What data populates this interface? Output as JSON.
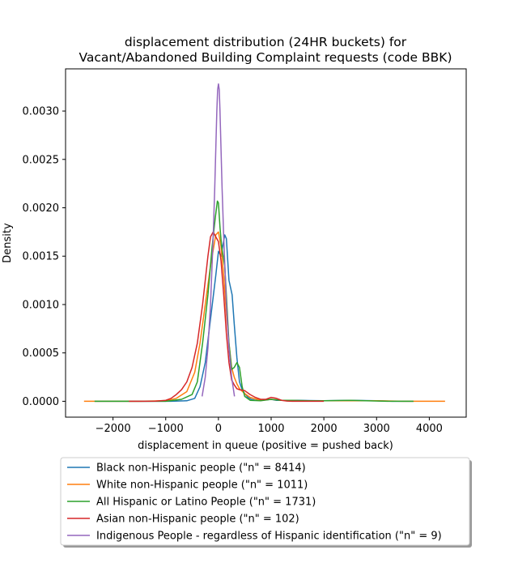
{
  "chart_data": {
    "type": "line",
    "title": [
      "displacement distribution (24HR buckets) for",
      "Vacant/Abandoned Building Complaint requests (code BBK)"
    ],
    "xlabel": "displacement in queue (positive = pushed back)",
    "ylabel": "Density",
    "xlim": [
      -2900,
      4700
    ],
    "ylim": [
      -0.000164,
      0.003436
    ],
    "xticks": [
      -2000,
      -1000,
      0,
      1000,
      2000,
      3000,
      4000
    ],
    "xtick_labels": [
      "−2000",
      "−1000",
      "0",
      "1000",
      "2000",
      "3000",
      "4000"
    ],
    "yticks": [
      0,
      0.0005,
      0.001,
      0.0015,
      0.002,
      0.0025,
      0.003
    ],
    "ytick_labels": [
      "0.0000",
      "0.0005",
      "0.0010",
      "0.0015",
      "0.0020",
      "0.0025",
      "0.0030"
    ],
    "grid": false,
    "legend_position": "below plot",
    "series": [
      {
        "name": "Black non-Hispanic people (\"n\" = 8414)",
        "color": "#1f77b4",
        "x": [
          -2350,
          -1500,
          -900,
          -600,
          -450,
          -350,
          -250,
          -150,
          -50,
          0,
          50,
          80,
          120,
          150,
          200,
          260,
          300,
          350,
          400,
          450,
          500,
          560,
          620,
          700,
          800,
          1000,
          1100,
          1300,
          1500,
          2000,
          2500,
          3000,
          3300,
          3500,
          3700
        ],
        "y": [
          0,
          0,
          0,
          5e-06,
          3e-05,
          0.00015,
          0.0004,
          0.00085,
          0.0013,
          0.00155,
          0.0015,
          0.0016,
          0.00172,
          0.00168,
          0.00125,
          0.0011,
          0.0008,
          0.00045,
          0.0002,
          0.00012,
          8e-05,
          4e-05,
          2e-05,
          1e-05,
          1e-05,
          2e-05,
          1e-05,
          1e-05,
          1e-05,
          5e-06,
          1e-05,
          5e-06,
          0,
          0,
          0
        ]
      },
      {
        "name": "White non-Hispanic people (\"n\" = 1011)",
        "color": "#ff7f0e",
        "x": [
          -2550,
          -2000,
          -1500,
          -1000,
          -800,
          -600,
          -450,
          -350,
          -250,
          -150,
          -50,
          0,
          50,
          100,
          150,
          200,
          250,
          300,
          350,
          400,
          500,
          600,
          800,
          1000,
          1200,
          1500,
          2000,
          2500,
          3000,
          3500,
          4000,
          4300
        ],
        "y": [
          0,
          0,
          0,
          5e-06,
          3e-05,
          0.0001,
          0.0003,
          0.0006,
          0.001,
          0.0014,
          0.00172,
          0.00175,
          0.0016,
          0.0013,
          0.0009,
          0.0006,
          0.00035,
          0.00025,
          0.00018,
          0.00013,
          8e-05,
          4e-05,
          1e-05,
          2e-05,
          1e-05,
          5e-06,
          5e-06,
          5e-06,
          5e-06,
          0,
          0,
          0
        ]
      },
      {
        "name": "All Hispanic or Latino People (\"n\" = 1731)",
        "color": "#2ca02c",
        "x": [
          -2350,
          -2000,
          -1500,
          -1000,
          -700,
          -500,
          -400,
          -300,
          -200,
          -120,
          -60,
          -20,
          0,
          30,
          60,
          90,
          120,
          160,
          200,
          250,
          300,
          350,
          400,
          450,
          500,
          600,
          800,
          1000,
          1200,
          1400,
          1700,
          2000,
          2500,
          2800,
          3200,
          3700
        ],
        "y": [
          0,
          0,
          0,
          0,
          2e-05,
          7e-05,
          0.0002,
          0.0006,
          0.0011,
          0.0016,
          0.0019,
          0.00207,
          0.00205,
          0.0018,
          0.0016,
          0.0015,
          0.0014,
          0.001,
          0.0006,
          0.00033,
          0.00035,
          0.0004,
          0.00035,
          0.00015,
          5e-05,
          1e-05,
          5e-06,
          2e-05,
          1e-05,
          1e-05,
          5e-06,
          5e-06,
          1e-05,
          5e-06,
          0,
          0
        ]
      },
      {
        "name": "Asian non-Hispanic people (\"n\" = 102)",
        "color": "#d62728",
        "x": [
          -1700,
          -1400,
          -1200,
          -1000,
          -900,
          -800,
          -700,
          -600,
          -500,
          -400,
          -300,
          -200,
          -150,
          -100,
          -50,
          0,
          50,
          100,
          150,
          200,
          250,
          300,
          350,
          400,
          500,
          600,
          700,
          800,
          900,
          1000,
          1100,
          1200,
          1300,
          1400,
          1600,
          2000
        ],
        "y": [
          0,
          0,
          2e-06,
          1e-05,
          3e-05,
          7e-05,
          0.00012,
          0.0002,
          0.00035,
          0.0006,
          0.001,
          0.0015,
          0.0017,
          0.00175,
          0.0017,
          0.00165,
          0.00145,
          0.0011,
          0.0007,
          0.0004,
          0.00022,
          0.00017,
          0.00013,
          0.00012,
          0.00011,
          7e-05,
          4e-05,
          2e-05,
          2e-05,
          4e-05,
          3e-05,
          1e-05,
          3e-06,
          0,
          0,
          0
        ]
      },
      {
        "name": "Indigenous People - regardless of Hispanic identification (\"n\" = 9)",
        "color": "#9467bd",
        "x": [
          -310,
          -250,
          -200,
          -150,
          -100,
          -70,
          -50,
          -30,
          -15,
          0,
          15,
          30,
          50,
          70,
          100,
          150,
          200,
          250,
          305
        ],
        "y": [
          5e-05,
          0.00025,
          0.00055,
          0.001,
          0.0017,
          0.0022,
          0.0026,
          0.003,
          0.00322,
          0.00328,
          0.00322,
          0.003,
          0.0026,
          0.0022,
          0.0017,
          0.001,
          0.00055,
          0.00025,
          5e-05
        ]
      }
    ]
  }
}
